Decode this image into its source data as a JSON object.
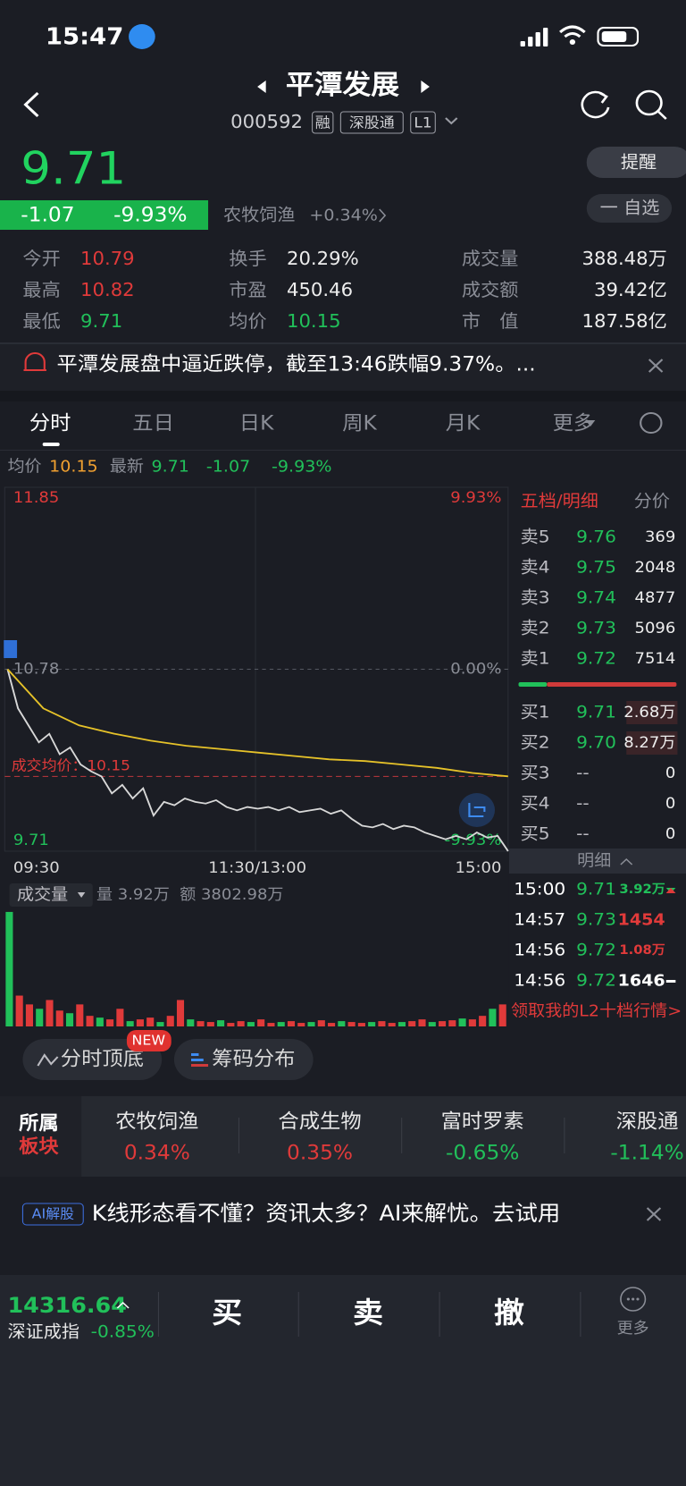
{
  "status_bar": {
    "time": "15:47"
  },
  "header": {
    "name": "平潭发展",
    "code": "000592",
    "tags": [
      "融",
      "深股通",
      "L1"
    ]
  },
  "quote": {
    "price": "9.71",
    "change": "-1.07",
    "change_pct": "-9.93%",
    "sector": "农牧饲渔",
    "sector_change": "+0.34%",
    "remind": "提醒",
    "watchlist": "一 自选"
  },
  "stats": [
    {
      "label": "今开",
      "value": "10.79"
    },
    {
      "label": "换手",
      "value": "20.29%"
    },
    {
      "label": "成交量",
      "value": "388.48万"
    },
    {
      "label": "最高",
      "value": "10.82"
    },
    {
      "label": "市盈",
      "value": "450.46"
    },
    {
      "label": "成交额",
      "value": "39.42亿"
    },
    {
      "label": "最低",
      "value": "9.71"
    },
    {
      "label": "均价",
      "value": "10.15"
    },
    {
      "label": "市　值",
      "value": "187.58亿"
    }
  ],
  "notice": "平潭发展盘中逼近跌停，截至13:46跌幅9.37%。...",
  "tabs": [
    "分时",
    "五日",
    "日K",
    "周K",
    "月K",
    "更多"
  ],
  "summary": {
    "avg_label": "均价",
    "avg": "10.15",
    "latest_label": "最新",
    "latest": "9.71",
    "change": "-1.07",
    "change_pct": "-9.93%"
  },
  "chart_data": {
    "type": "line",
    "ylim": [
      9.71,
      11.85
    ],
    "yticks": [
      {
        "value": 11.85,
        "label": "11.85"
      },
      {
        "value": 10.78,
        "label": "10.78"
      },
      {
        "value": 9.71,
        "label": "9.71"
      }
    ],
    "pct_ticks": [
      {
        "value": 11.85,
        "label": "9.93%"
      },
      {
        "value": 10.78,
        "label": "0.00%"
      },
      {
        "value": 9.71,
        "label": "-9.93%"
      }
    ],
    "xlabels": [
      "09:30",
      "11:30/13:00",
      "15:00"
    ],
    "avg_line_label": "成交均价：10.15",
    "avg_line_value": 10.15,
    "series": [
      {
        "name": "最新",
        "color": "#d8d8d8",
        "values": [
          10.78,
          10.55,
          10.45,
          10.35,
          10.4,
          10.28,
          10.32,
          10.22,
          10.18,
          10.15,
          10.05,
          10.1,
          10.02,
          10.08,
          9.92,
          10.0,
          9.98,
          10.02,
          10.0,
          9.99,
          10.01,
          9.97,
          9.95,
          9.97,
          9.96,
          9.97,
          9.95,
          9.97,
          9.94,
          9.95,
          9.96,
          9.93,
          9.95,
          9.9,
          9.86,
          9.85,
          9.87,
          9.84,
          9.86,
          9.85,
          9.82,
          9.8,
          9.78,
          9.8,
          9.78,
          9.82,
          9.79,
          9.8,
          9.71
        ]
      },
      {
        "name": "均价",
        "color": "#e6c229",
        "values": [
          10.78,
          10.55,
          10.45,
          10.4,
          10.36,
          10.33,
          10.31,
          10.29,
          10.27,
          10.25,
          10.24,
          10.22,
          10.2,
          10.17,
          10.15
        ]
      }
    ],
    "volume": {
      "label": "成交量",
      "amount_vol": "量 3.92万",
      "amount_val": "额 3802.98万",
      "ylim": [
        0,
        135
      ],
      "colors": [
        "#e03a3a",
        "#21c05a"
      ],
      "values": [
        130,
        35,
        25,
        20,
        30,
        18,
        15,
        25,
        12,
        10,
        8,
        20,
        6,
        8,
        10,
        5,
        12,
        30,
        8,
        6,
        5,
        7,
        4,
        6,
        5,
        8,
        4,
        5,
        6,
        4,
        5,
        7,
        4,
        6,
        5,
        4,
        5,
        6,
        4,
        5,
        6,
        8,
        5,
        6,
        7,
        9,
        8,
        12,
        20,
        25
      ]
    }
  },
  "order_book": {
    "title": "五档/明细",
    "alt": "分价",
    "sell": [
      [
        "卖5",
        "9.76",
        "369"
      ],
      [
        "卖4",
        "9.75",
        "2048"
      ],
      [
        "卖3",
        "9.74",
        "4877"
      ],
      [
        "卖2",
        "9.73",
        "5096"
      ],
      [
        "卖1",
        "9.72",
        "7514"
      ]
    ],
    "buy": [
      [
        "买1",
        "9.71",
        "2.68万"
      ],
      [
        "买2",
        "9.70",
        "8.27万"
      ],
      [
        "买3",
        "--",
        "0"
      ],
      [
        "买4",
        "--",
        "0"
      ],
      [
        "买5",
        "--",
        "0"
      ]
    ],
    "detail": "明细",
    "trades": [
      [
        "15:00",
        "9.71",
        "3.92万"
      ],
      [
        "14:57",
        "9.73",
        "1454"
      ],
      [
        "14:56",
        "9.72",
        "1.08万"
      ],
      [
        "14:56",
        "9.72",
        "1646"
      ]
    ],
    "link": "领取我的L2十档行情>"
  },
  "tools": {
    "top_bottom": "分时顶底",
    "badge": "NEW",
    "chips": "筹码分布"
  },
  "sectors": {
    "title_1": "所属",
    "title_2": "板块",
    "items": [
      {
        "name": "农牧饲渔",
        "change": "0.34%"
      },
      {
        "name": "合成生物",
        "change": "0.35%"
      },
      {
        "name": "富时罗素",
        "change": "-0.65%"
      },
      {
        "name": "深股通",
        "change": "-1.14%"
      }
    ]
  },
  "ai_banner": {
    "badge": "AI解股",
    "text": "K线形态看不懂？资讯太多？AI来解忧。去试用"
  },
  "bottom_bar": {
    "index_value": "14316.64",
    "index_name": "深证成指",
    "index_change": "-0.85%",
    "buy": "买",
    "sell": "卖",
    "cancel": "撤",
    "more": "更多"
  }
}
